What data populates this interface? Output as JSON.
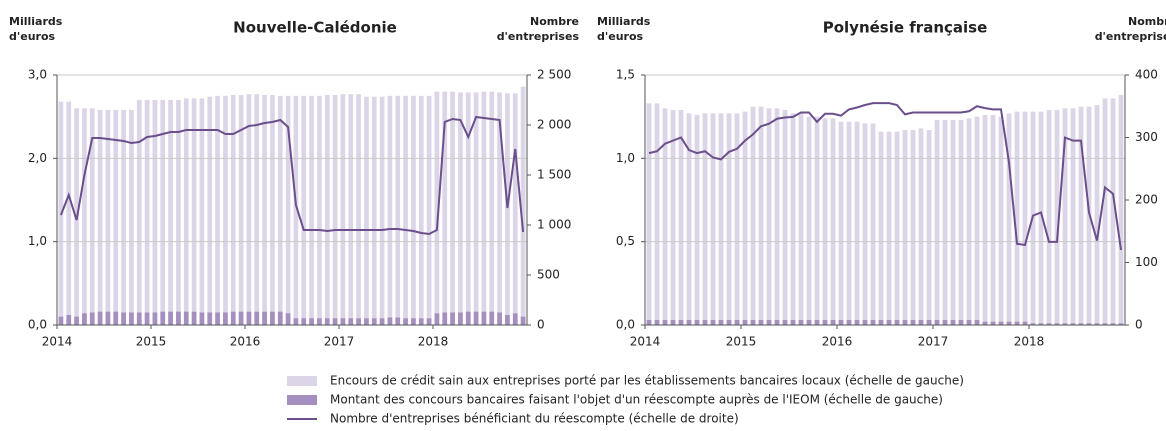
{
  "chart_data": [
    {
      "type": "bar-line",
      "title": "Nouvelle-Calédonie",
      "ylabel": [
        "Milliards",
        "d'euros"
      ],
      "y2label": [
        "Nombre",
        "d'entreprises"
      ],
      "categories": [
        "2014",
        null,
        null,
        null,
        null,
        null,
        null,
        null,
        null,
        null,
        null,
        null,
        "2015",
        null,
        null,
        null,
        null,
        null,
        null,
        null,
        null,
        null,
        null,
        null,
        "2016",
        null,
        null,
        null,
        null,
        null,
        null,
        null,
        null,
        null,
        null,
        null,
        "2017",
        null,
        null,
        null,
        null,
        null,
        null,
        null,
        null,
        null,
        null,
        null,
        "2018",
        null,
        null,
        null,
        null,
        null,
        null,
        null,
        null,
        null,
        null,
        null
      ],
      "ylim": [
        0,
        3
      ],
      "yticks": [
        {
          "value": 0,
          "label": "0,0"
        },
        {
          "value": 1,
          "label": "1,0"
        },
        {
          "value": 2,
          "label": "2,0"
        },
        {
          "value": 3,
          "label": "3,0"
        }
      ],
      "y2lim": [
        0,
        2500
      ],
      "y2ticks": [
        0,
        500,
        {
          "value": 1000,
          "label": "1 000"
        },
        {
          "value": 1500,
          "label": "1 500"
        },
        {
          "value": 2000,
          "label": "2 000"
        },
        {
          "value": 2500,
          "label": "2 500"
        }
      ],
      "grid": true,
      "series": [
        {
          "name": "Encours de crédit sain aux entreprises porté par les établissements bancaires locaux (échelle de gauche)",
          "kind": "bar",
          "color": "#dcd5e7",
          "values": [
            2.68,
            2.68,
            2.6,
            2.6,
            2.6,
            2.58,
            2.58,
            2.58,
            2.58,
            2.58,
            2.7,
            2.7,
            2.7,
            2.7,
            2.7,
            2.7,
            2.72,
            2.72,
            2.72,
            2.74,
            2.75,
            2.75,
            2.76,
            2.76,
            2.77,
            2.77,
            2.76,
            2.76,
            2.75,
            2.75,
            2.75,
            2.75,
            2.75,
            2.75,
            2.76,
            2.76,
            2.77,
            2.77,
            2.77,
            2.74,
            2.74,
            2.74,
            2.75,
            2.75,
            2.75,
            2.75,
            2.75,
            2.75,
            2.8,
            2.8,
            2.8,
            2.79,
            2.79,
            2.79,
            2.8,
            2.8,
            2.79,
            2.78,
            2.78,
            2.86
          ]
        },
        {
          "name": "Montant des concours bancaires faisant l'objet d'un réescompte auprès de l'IEOM (échelle de gauche)",
          "kind": "bar",
          "color": "#a58fbe",
          "values": [
            0.1,
            0.12,
            0.1,
            0.14,
            0.15,
            0.16,
            0.16,
            0.16,
            0.15,
            0.15,
            0.15,
            0.15,
            0.15,
            0.16,
            0.16,
            0.16,
            0.16,
            0.16,
            0.15,
            0.15,
            0.15,
            0.15,
            0.16,
            0.16,
            0.16,
            0.16,
            0.16,
            0.16,
            0.16,
            0.14,
            0.08,
            0.08,
            0.08,
            0.08,
            0.08,
            0.08,
            0.08,
            0.08,
            0.08,
            0.08,
            0.08,
            0.08,
            0.09,
            0.09,
            0.08,
            0.08,
            0.08,
            0.08,
            0.14,
            0.15,
            0.15,
            0.15,
            0.16,
            0.16,
            0.16,
            0.16,
            0.15,
            0.12,
            0.14,
            0.1
          ]
        },
        {
          "name": "Nombre d'entreprises bénéficiant du réescompte (échelle de droite)",
          "kind": "line",
          "axis": "y2",
          "color": "#6b4f8c",
          "values": [
            1100,
            1300,
            1050,
            1500,
            1870,
            1870,
            1860,
            1850,
            1840,
            1820,
            1830,
            1880,
            1890,
            1910,
            1930,
            1930,
            1950,
            1950,
            1950,
            1950,
            1950,
            1910,
            1910,
            1950,
            1990,
            2000,
            2020,
            2030,
            2050,
            1980,
            1200,
            950,
            950,
            950,
            940,
            950,
            950,
            950,
            950,
            950,
            950,
            950,
            960,
            960,
            950,
            940,
            920,
            910,
            950,
            2030,
            2060,
            2050,
            1880,
            2080,
            2070,
            2060,
            2050,
            1170,
            1760,
            930
          ]
        }
      ]
    },
    {
      "type": "bar-line",
      "title": "Polynésie française",
      "ylabel": [
        "Milliards",
        "d'euros"
      ],
      "y2label": [
        "Nombre",
        "d'entreprises"
      ],
      "categories": [
        "2014",
        null,
        null,
        null,
        null,
        null,
        null,
        null,
        null,
        null,
        null,
        null,
        "2015",
        null,
        null,
        null,
        null,
        null,
        null,
        null,
        null,
        null,
        null,
        null,
        "2016",
        null,
        null,
        null,
        null,
        null,
        null,
        null,
        null,
        null,
        null,
        null,
        "2017",
        null,
        null,
        null,
        null,
        null,
        null,
        null,
        null,
        null,
        null,
        null,
        "2018",
        null,
        null,
        null,
        null,
        null,
        null,
        null,
        null,
        null,
        null,
        null
      ],
      "ylim": [
        0,
        1.5
      ],
      "yticks": [
        {
          "value": 0,
          "label": "0,0"
        },
        {
          "value": 0.5,
          "label": "0,5"
        },
        {
          "value": 1,
          "label": "1,0"
        },
        {
          "value": 1.5,
          "label": "1,5"
        }
      ],
      "y2lim": [
        0,
        400
      ],
      "y2ticks": [
        0,
        100,
        200,
        300,
        400
      ],
      "grid": true,
      "series": [
        {
          "kind": "bar",
          "color": "#dcd5e7",
          "values": [
            1.33,
            1.33,
            1.3,
            1.29,
            1.29,
            1.27,
            1.26,
            1.27,
            1.27,
            1.27,
            1.27,
            1.27,
            1.28,
            1.31,
            1.31,
            1.3,
            1.3,
            1.29,
            1.27,
            1.27,
            1.25,
            1.25,
            1.24,
            1.24,
            1.22,
            1.22,
            1.22,
            1.21,
            1.21,
            1.16,
            1.16,
            1.16,
            1.17,
            1.17,
            1.18,
            1.17,
            1.23,
            1.23,
            1.23,
            1.23,
            1.24,
            1.25,
            1.26,
            1.26,
            1.25,
            1.27,
            1.28,
            1.28,
            1.28,
            1.28,
            1.29,
            1.29,
            1.3,
            1.3,
            1.31,
            1.31,
            1.32,
            1.36,
            1.36,
            1.38
          ]
        },
        {
          "kind": "bar",
          "color": "#a58fbe",
          "values": [
            0.03,
            0.03,
            0.03,
            0.03,
            0.03,
            0.03,
            0.03,
            0.03,
            0.03,
            0.03,
            0.03,
            0.03,
            0.03,
            0.03,
            0.03,
            0.03,
            0.03,
            0.03,
            0.03,
            0.03,
            0.03,
            0.03,
            0.03,
            0.03,
            0.03,
            0.03,
            0.03,
            0.03,
            0.03,
            0.03,
            0.03,
            0.03,
            0.03,
            0.03,
            0.03,
            0.03,
            0.03,
            0.03,
            0.03,
            0.03,
            0.03,
            0.03,
            0.02,
            0.02,
            0.02,
            0.02,
            0.02,
            0.02,
            0.01,
            0.01,
            0.01,
            0.01,
            0.01,
            0.01,
            0.01,
            0.01,
            0.01,
            0.01,
            0.01,
            0.01
          ]
        },
        {
          "kind": "line",
          "axis": "y2",
          "color": "#6b4f8c",
          "values": [
            275,
            278,
            290,
            295,
            300,
            280,
            275,
            278,
            268,
            265,
            277,
            282,
            295,
            305,
            318,
            322,
            330,
            332,
            333,
            340,
            340,
            325,
            338,
            338,
            335,
            345,
            348,
            352,
            355,
            355,
            355,
            352,
            337,
            340,
            340,
            340,
            340,
            340,
            340,
            340,
            342,
            350,
            347,
            345,
            345,
            260,
            130,
            128,
            175,
            180,
            133,
            133,
            300,
            295,
            295,
            180,
            135,
            220,
            210,
            120
          ]
        }
      ]
    }
  ]
}
